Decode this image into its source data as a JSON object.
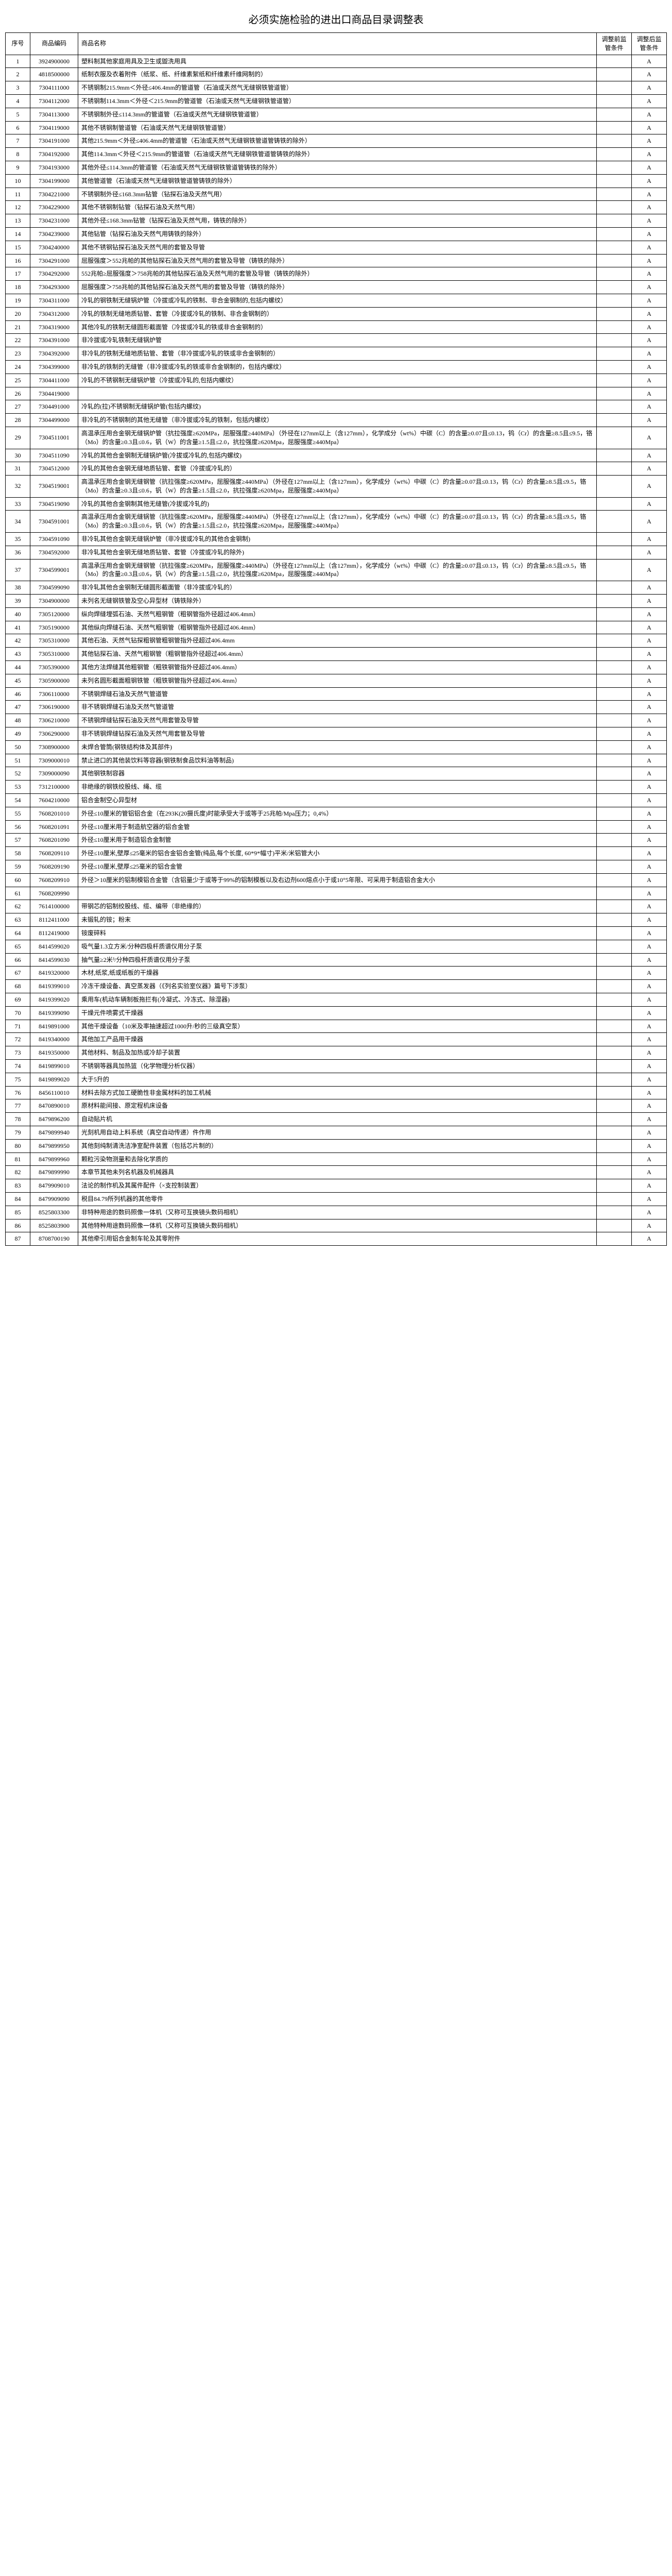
{
  "title": "必须实施检验的进出口商品目录调整表",
  "headers": {
    "seq": "序号",
    "code": "商品编码",
    "name": "商品名称",
    "before": "调整前监管条件",
    "after": "调整后监管条件"
  },
  "rows": [
    {
      "seq": "1",
      "code": "3924900000",
      "name": "塑料制其他家庭用具及卫生或盥洗用具",
      "before": "",
      "after": "A"
    },
    {
      "seq": "2",
      "code": "4818500000",
      "name": "纸制衣服及衣着附件（纸浆、纸、纤维素絮纸和纤维素纤维网制的）",
      "before": "",
      "after": "A"
    },
    {
      "seq": "3",
      "code": "7304111000",
      "name": "不锈钢制215.9mm＜外径≤406.4mm的管道管（石油或天然气无缝钢铁管道管）",
      "before": "",
      "after": "A"
    },
    {
      "seq": "4",
      "code": "7304112000",
      "name": "不锈钢制114.3mm＜外径＜215.9mm的管道管（石油或天然气无缝钢铁管道管）",
      "before": "",
      "after": "A"
    },
    {
      "seq": "5",
      "code": "7304113000",
      "name": "不锈钢制外径≤114.3mm的管道管（石油或天然气无缝钢铁管道管）",
      "before": "",
      "after": "A"
    },
    {
      "seq": "6",
      "code": "7304119000",
      "name": "其他不锈钢制管道管（石油或天然气无缝钢铁管道管）",
      "before": "",
      "after": "A"
    },
    {
      "seq": "7",
      "code": "7304191000",
      "name": "其他215.9mm＜外径≤406.4mm的管道管（石油或天然气无缝钢铁管道管铸铁的除外）",
      "before": "",
      "after": "A"
    },
    {
      "seq": "8",
      "code": "7304192000",
      "name": "其他114.3mm＜外径＜215.9mm的管道管（石油或天然气无缝钢铁管道管铸铁的除外）",
      "before": "",
      "after": "A"
    },
    {
      "seq": "9",
      "code": "7304193000",
      "name": "其他外径≤114.3mm的管道管（石油或天然气无缝钢铁管道管铸铁的除外）",
      "before": "",
      "after": "A"
    },
    {
      "seq": "10",
      "code": "7304199000",
      "name": "其他管道管（石油或天然气无缝钢铁管道管铸铁的除外）",
      "before": "",
      "after": "A"
    },
    {
      "seq": "11",
      "code": "7304221000",
      "name": "不锈钢制外径≤168.3mm钻管（钻探石油及天然气用）",
      "before": "",
      "after": "A"
    },
    {
      "seq": "12",
      "code": "7304229000",
      "name": "其他不锈钢制钻管（钻探石油及天然气用）",
      "before": "",
      "after": "A"
    },
    {
      "seq": "13",
      "code": "7304231000",
      "name": "其他外径≤168.3mm钻管（钻探石油及天然气用，铸铁的除外）",
      "before": "",
      "after": "A"
    },
    {
      "seq": "14",
      "code": "7304239000",
      "name": "其他钻管（钻探石油及天然气用铸铁的除外）",
      "before": "",
      "after": "A"
    },
    {
      "seq": "15",
      "code": "7304240000",
      "name": "其他不锈钢钻探石油及天然气用的套管及导管",
      "before": "",
      "after": "A"
    },
    {
      "seq": "16",
      "code": "7304291000",
      "name": "屈服强度＞552兆帕的其他钻探石油及天然气用的套管及导管（铸铁的除外）",
      "before": "",
      "after": "A"
    },
    {
      "seq": "17",
      "code": "7304292000",
      "name": "552兆帕≥屈服强度＞758兆帕的其他钻探石油及天然气用的套管及导管（铸铁的除外）",
      "before": "",
      "after": "A"
    },
    {
      "seq": "18",
      "code": "7304293000",
      "name": "屈服强度＞758兆帕的其他钻探石油及天然气用的套管及导管（铸铁的除外）",
      "before": "",
      "after": "A"
    },
    {
      "seq": "19",
      "code": "7304311000",
      "name": "冷轧的钢铁制无缝锅炉管（冷拔或冷轧的铁制、非合金钢制的,包括内螺纹）",
      "before": "",
      "after": "A"
    },
    {
      "seq": "20",
      "code": "7304312000",
      "name": "冷轧的铁制无缝地质钻管、套管（冷拔或冷轧的铁制、非合金钢制的）",
      "before": "",
      "after": "A"
    },
    {
      "seq": "21",
      "code": "7304319000",
      "name": "其他冷轧的铁制无缝圆形截面管（冷拔或冷轧的铁或非合金钢制的）",
      "before": "",
      "after": "A"
    },
    {
      "seq": "22",
      "code": "7304391000",
      "name": "非冷拔或冷轧铁制无缝锅炉管",
      "before": "",
      "after": "A"
    },
    {
      "seq": "23",
      "code": "7304392000",
      "name": "非冷轧的铁制无缝地质钻管、套管（非冷拔或冷轧的铁或非合金钢制的）",
      "before": "",
      "after": "A"
    },
    {
      "seq": "24",
      "code": "7304399000",
      "name": "非冷轧的铁制的无缝管（非冷拔或冷轧的铁或非合金钢制的，包括内螺纹）",
      "before": "",
      "after": "A"
    },
    {
      "seq": "25",
      "code": "7304411000",
      "name": "冷轧的不锈钢制无缝锅炉管（冷拔或冷轧的,包括内螺纹）",
      "before": "",
      "after": "A"
    },
    {
      "seq": "26",
      "code": "7304419000",
      "name": "",
      "before": "",
      "after": "A"
    },
    {
      "seq": "27",
      "code": "7304491000",
      "name": "冷轧的(拉)不锈钢制无缝锅炉管(包括内螺纹)",
      "before": "",
      "after": "A"
    },
    {
      "seq": "28",
      "code": "7304499000",
      "name": "非冷轧的不锈钢制的其他无缝管（非冷拔或冷轧的铁制，包括内螺纹）",
      "before": "",
      "after": "A"
    },
    {
      "seq": "29",
      "code": "7304511001",
      "name": "高温承压用合金钢无缝锅炉管（抗拉强度≥620MPa，屈服强度≥440MPa）（外径在127mm以上（含127mm），化学成分（wt%）中碳（C）的含量≥0.07且≤0.13，钨（Cr）的含量≥8.5且≤9.5，铬（Mo）的含量≥0.3且≤0.6，钒（W）的含量≥1.5且≤2.0，抗拉强度≥620Mpa，屈服强度≥440Mpa）",
      "before": "",
      "after": "A"
    },
    {
      "seq": "30",
      "code": "7304511090",
      "name": "冷轧的其他合金钢制无缝锅炉管(冷拔或冷轧的,包括内螺纹)",
      "before": "",
      "after": "A"
    },
    {
      "seq": "31",
      "code": "7304512000",
      "name": "冷轧的其他合金钢无缝地质钻管、套管（冷拔或冷轧的）",
      "before": "",
      "after": "A"
    },
    {
      "seq": "32",
      "code": "7304519001",
      "name": "高温承压用合金钢无缝钢管（抗拉强度≥620MPa，屈服强度≥440MPa）（外径在127mm以上（含127mm），化学成分（wt%）中碳（C）的含量≥0.07且≤0.13，钨（Cr）的含量≥8.5且≤9.5，铬（Mo）的含量≥0.3且≤0.6，钒（W）的含量≥1.5且≤2.0，抗拉强度≥620Mpa，屈服强度≥440Mpa）",
      "before": "",
      "after": "A"
    },
    {
      "seq": "33",
      "code": "7304519090",
      "name": "冷轧的其他合金钢制其他无缝管(冷拔或冷轧的)",
      "before": "",
      "after": "A"
    },
    {
      "seq": "34",
      "code": "7304591001",
      "name": "高温承压用合金钢无缝锅管（抗拉强度≥620MPa，屈服强度≥440MPa）（外径在127mm以上（含127mm），化学成分（wt%）中碳（C）的含量≥0.07且≤0.13，钨（Cr）的含量≥8.5且≤9.5，铬（Mo）的含量≥0.3且≤0.6，钒（W）的含量≥1.5且≤2.0，抗拉强度≥620Mpa，屈服强度≥440Mpa）",
      "before": "",
      "after": "A"
    },
    {
      "seq": "35",
      "code": "7304591090",
      "name": "非冷轧其他合金钢无缝锅炉管（非冷拔或冷轧的其他合金钢制)",
      "before": "",
      "after": "A"
    },
    {
      "seq": "36",
      "code": "7304592000",
      "name": "非冷轧其他合金钢无缝地质钻管、套管（冷拔或冷轧的除外)",
      "before": "",
      "after": "A"
    },
    {
      "seq": "37",
      "code": "7304599001",
      "name": "高温承压用合金钢无缝钢管（抗拉强度≥620MPa，屈服强度≥440MPa）（外径在127mm以上（含127mm），化学成分（wt%）中碳（C）的含量≥0.07且≤0.13，钨（Cr）的含量≥8.5且≤9.5，铬（Mo）的含量≥0.3且≤0.6，钒（W）的含量≥1.5且≤2.0，抗拉强度≥620Mpa，屈服强度≥440Mpa）",
      "before": "",
      "after": "A"
    },
    {
      "seq": "38",
      "code": "7304599090",
      "name": "非冷轧其他合金钢制无缝圆形截面管（非冷拔或冷轧的）",
      "before": "",
      "after": "A"
    },
    {
      "seq": "39",
      "code": "7304900000",
      "name": "未列名无缝钢铁管及空心异型材（铸铁除外）",
      "before": "",
      "after": "A"
    },
    {
      "seq": "40",
      "code": "7305120000",
      "name": "纵向焊缝埋弧石油、天然气粗钢管（粗钢管指外径超过406.4mm）",
      "before": "",
      "after": "A"
    },
    {
      "seq": "41",
      "code": "7305190000",
      "name": "其他纵向焊缝石油、天然气粗钢管（粗钢管指外径超过406.4mm）",
      "before": "",
      "after": "A"
    },
    {
      "seq": "42",
      "code": "7305310000",
      "name": "其他石油、天然气钻探粗钢管粗钢管指外径超过406.4mm",
      "before": "",
      "after": "A"
    },
    {
      "seq": "43",
      "code": "7305310000",
      "name": "其他钻探石油、天然气粗钢管（粗钢管指外径超过406.4mm）",
      "before": "",
      "after": "A"
    },
    {
      "seq": "44",
      "code": "7305390000",
      "name": "其他方法焊缝其他粗钢管（粗铁钢管指外径超过406.4mm）",
      "before": "",
      "after": "A"
    },
    {
      "seq": "45",
      "code": "7305900000",
      "name": "未列名圆形截面粗钢铁管（粗铁钢管指外径超过406.4mm）",
      "before": "",
      "after": "A"
    },
    {
      "seq": "46",
      "code": "7306110000",
      "name": "不锈钢焊缝石油及天然气管道管",
      "before": "",
      "after": "A"
    },
    {
      "seq": "47",
      "code": "7306190000",
      "name": "非不锈钢焊缝石油及天然气管道管",
      "before": "",
      "after": "A"
    },
    {
      "seq": "48",
      "code": "7306210000",
      "name": "不锈钢焊缝钻探石油及天然气用套管及导管",
      "before": "",
      "after": "A"
    },
    {
      "seq": "49",
      "code": "7306290000",
      "name": "非不锈钢焊缝钻探石油及天然气用套管及导管",
      "before": "",
      "after": "A"
    },
    {
      "seq": "50",
      "code": "7308900000",
      "name": "未焊合管筒(钢铁结构体及其部件)",
      "before": "",
      "after": "A"
    },
    {
      "seq": "51",
      "code": "7309000010",
      "name": "禁止进口的其他装饮料等容器(钢铁制食品饮料油等制品)",
      "before": "",
      "after": "A"
    },
    {
      "seq": "52",
      "code": "7309000090",
      "name": "其他钢铁制容器",
      "before": "",
      "after": "A"
    },
    {
      "seq": "53",
      "code": "7312100000",
      "name": "非绝缘的钢铁绞股线、绳、缆",
      "before": "",
      "after": "A"
    },
    {
      "seq": "54",
      "code": "7604210000",
      "name": "铝合金制空心异型材",
      "before": "",
      "after": "A"
    },
    {
      "seq": "55",
      "code": "7608201010",
      "name": "外径≤10厘米的管铝铝合金（在293K(20摄氏度)时能承受大于或等于25兆帕/Mpa压力；0,4%）",
      "before": "",
      "after": "A"
    },
    {
      "seq": "56",
      "code": "7608201091",
      "name": "外径≤10厘米用于制造航空器的铝合金管",
      "before": "",
      "after": "A"
    },
    {
      "seq": "57",
      "code": "7608201090",
      "name": "外径≤10厘米用于制造铝合金制管",
      "before": "",
      "after": "A"
    },
    {
      "seq": "58",
      "code": "7608209110",
      "name": "外径≤10厘米,壁厚≤25毫米的铝合金铝合金管(纯品,每个长度, 60*9*幅寸)平米/米铝管大小",
      "before": "",
      "after": "A"
    },
    {
      "seq": "59",
      "code": "7608209190",
      "name": "外径≤10厘米,壁厚≤25毫米的铝合金管",
      "before": "",
      "after": "A"
    },
    {
      "seq": "60",
      "code": "7608209910",
      "name": "外径＞10厘米的铝制模铝合金管（含铝量少于或等于99%的铝制模板以及右边剂600熔点小于或10°5年限、可采用于制造铝合金大小",
      "before": "",
      "after": "A"
    },
    {
      "seq": "61",
      "code": "7608209990",
      "name": "",
      "before": "",
      "after": "A"
    },
    {
      "seq": "62",
      "code": "7614100000",
      "name": "带钢芯的铝制绞股线、缆、编带（非绝缘的）",
      "before": "",
      "after": "A"
    },
    {
      "seq": "63",
      "code": "8112411000",
      "name": "未锻轧的铵；粉末",
      "before": "",
      "after": "A"
    },
    {
      "seq": "64",
      "code": "8112419000",
      "name": "铵废碎料",
      "before": "",
      "after": "A"
    },
    {
      "seq": "65",
      "code": "8414599020",
      "name": "吸气量1.3立方米/分种四极杆质谱仪用分子泵",
      "before": "",
      "after": "A"
    },
    {
      "seq": "66",
      "code": "8414599030",
      "name": "抽气量≥2米³/分种四极杆质谱仪用分子泵",
      "before": "",
      "after": "A"
    },
    {
      "seq": "67",
      "code": "8419320000",
      "name": "木材,纸浆,纸或纸板的干燥器",
      "before": "",
      "after": "A"
    },
    {
      "seq": "68",
      "code": "8419399010",
      "name": "冷冻干燥设备、真空蒸发器（《列名实验室仪器》篇号下涉泵）",
      "before": "",
      "after": "A"
    },
    {
      "seq": "69",
      "code": "8419399020",
      "name": "乘用车(机动车辆制板拖拦有(冷凝式、冷冻式、除湿器)",
      "before": "",
      "after": "A"
    },
    {
      "seq": "70",
      "code": "8419399090",
      "name": "干燥元件喷雾式干燥器",
      "before": "",
      "after": "A"
    },
    {
      "seq": "71",
      "code": "8419891000",
      "name": "其他干燥设备（10米及率抽速超过1000升/秒的三级真空泵）",
      "before": "",
      "after": "A"
    },
    {
      "seq": "72",
      "code": "8419340000",
      "name": "其他加工产品用干燥器",
      "before": "",
      "after": "A"
    },
    {
      "seq": "73",
      "code": "8419350000",
      "name": "其他材料、制品及加热或冷却子装置",
      "before": "",
      "after": "A"
    },
    {
      "seq": "74",
      "code": "8419899010",
      "name": "不锈钢等器具加热篮（化学物理分析仪器）",
      "before": "",
      "after": "A"
    },
    {
      "seq": "75",
      "code": "8419899020",
      "name": "大于5升的",
      "before": "",
      "after": "A"
    },
    {
      "seq": "76",
      "code": "8456110010",
      "name": "材料去除方式加工硬脆性非金属材料的加工机械",
      "before": "",
      "after": "A"
    },
    {
      "seq": "77",
      "code": "8470890010",
      "name": "原材料能间接、原定程机床设备",
      "before": "",
      "after": "A"
    },
    {
      "seq": "78",
      "code": "8479896200",
      "name": "自动贴片机",
      "before": "",
      "after": "A"
    },
    {
      "seq": "79",
      "code": "8479899940",
      "name": "光刻机用自动上料系统（真空自动传递）件作用",
      "before": "",
      "after": "A"
    },
    {
      "seq": "80",
      "code": "8479899950",
      "name": "其他刻纯制清洗洁净室配件装置（包括芯片制的）",
      "before": "",
      "after": "A"
    },
    {
      "seq": "81",
      "code": "8479899960",
      "name": "颗粒污染物测量和去除化学质的",
      "before": "",
      "after": "A"
    },
    {
      "seq": "82",
      "code": "8479899990",
      "name": "本章节其他未列名机器及机械器具",
      "before": "",
      "after": "A"
    },
    {
      "seq": "83",
      "code": "8479909010",
      "name": "法论的制作机及其属件配件（×支控制装置）",
      "before": "",
      "after": "A"
    },
    {
      "seq": "84",
      "code": "8479909090",
      "name": "税目84.79所列机器的其他零件",
      "before": "",
      "after": "A"
    },
    {
      "seq": "85",
      "code": "8525803300",
      "name": "非特种用途的数码照像一体机（又称可互换镜头数码相机）",
      "before": "",
      "after": "A"
    },
    {
      "seq": "86",
      "code": "8525803900",
      "name": "其他特种用途数码照像一体机（又称可互换镜头数码相机）",
      "before": "",
      "after": "A"
    },
    {
      "seq": "87",
      "code": "8708700190",
      "name": "其他牵引用铝合金制车轮及其零附件",
      "before": "",
      "after": "A"
    }
  ]
}
